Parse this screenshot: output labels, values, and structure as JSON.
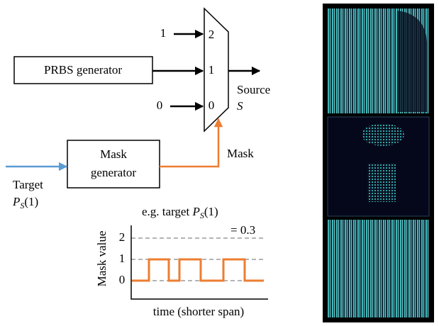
{
  "mux": {
    "inputs": [
      "1",
      "0"
    ],
    "ports": [
      "2",
      "1",
      "0"
    ],
    "output_label": "Source",
    "output_symbol": "S"
  },
  "prbs": {
    "label": "PRBS generator"
  },
  "mask_generator": {
    "lines": [
      "Mask",
      "generator"
    ],
    "output_label": "Mask"
  },
  "target": {
    "label": "Target",
    "symbol": "P",
    "subscript": "S",
    "argument": "(1)"
  },
  "plot": {
    "annotation": {
      "text": "e.g. target",
      "symbol": "P",
      "subscript": "S",
      "argument": "(1)",
      "value": "= 0.3"
    },
    "y_axis_label": "Mask value",
    "y_ticks": [
      "2",
      "1",
      "0"
    ],
    "x_axis_label": "time (shorter span)"
  }
}
